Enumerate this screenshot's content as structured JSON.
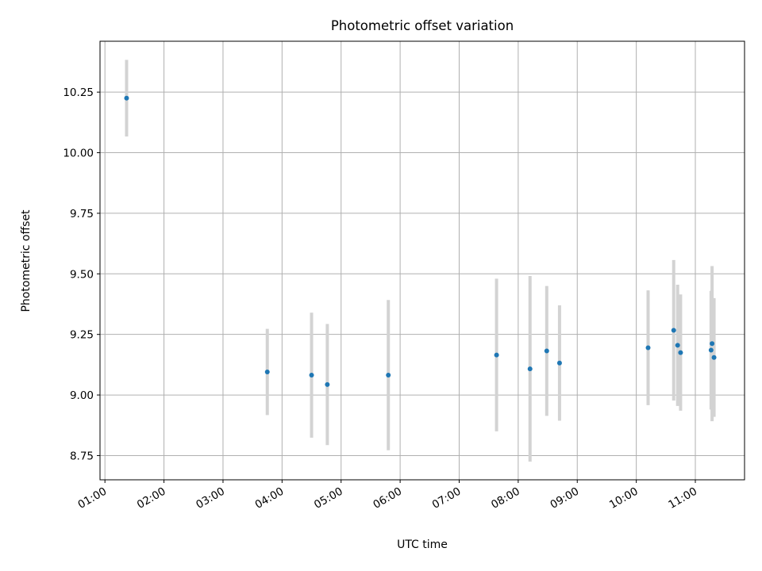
{
  "chart_data": {
    "type": "scatter",
    "title": "Photometric offset variation",
    "xlabel": "UTC time",
    "ylabel": "Photometric offset",
    "x_tick_labels": [
      "01:00",
      "02:00",
      "03:00",
      "04:00",
      "05:00",
      "06:00",
      "07:00",
      "08:00",
      "09:00",
      "10:00",
      "11:00"
    ],
    "y_tick_labels": [
      "8.75",
      "9.00",
      "9.25",
      "9.50",
      "9.75",
      "10.00",
      "10.25"
    ],
    "x_ticks": [
      "01:00",
      "02:00",
      "03:00",
      "04:00",
      "05:00",
      "06:00",
      "07:00",
      "08:00",
      "09:00",
      "10:00",
      "11:00"
    ],
    "y_ticks": [
      8.75,
      9.0,
      9.25,
      9.5,
      9.75,
      10.0,
      10.25
    ],
    "xlim": [
      "00:55",
      "11:50"
    ],
    "ylim": [
      8.65,
      10.46
    ],
    "grid": true,
    "marker_color": "#1f77b4",
    "errorbar_color": "#d3d3d3",
    "points": [
      {
        "x": "01:22",
        "y": 10.225,
        "err": 0.158
      },
      {
        "x": "03:45",
        "y": 9.095,
        "err": 0.178
      },
      {
        "x": "04:30",
        "y": 9.082,
        "err": 0.258
      },
      {
        "x": "04:46",
        "y": 9.043,
        "err": 0.25
      },
      {
        "x": "05:48",
        "y": 9.082,
        "err": 0.31
      },
      {
        "x": "07:38",
        "y": 9.165,
        "err": 0.315
      },
      {
        "x": "08:12",
        "y": 9.108,
        "err": 0.383
      },
      {
        "x": "08:29",
        "y": 9.182,
        "err": 0.268
      },
      {
        "x": "08:42",
        "y": 9.132,
        "err": 0.238
      },
      {
        "x": "10:12",
        "y": 9.195,
        "err": 0.237
      },
      {
        "x": "10:38",
        "y": 9.267,
        "err": 0.29
      },
      {
        "x": "10:42",
        "y": 9.205,
        "err": 0.25
      },
      {
        "x": "10:45",
        "y": 9.175,
        "err": 0.24
      },
      {
        "x": "11:16",
        "y": 9.185,
        "err": 0.245
      },
      {
        "x": "11:17",
        "y": 9.212,
        "err": 0.32
      },
      {
        "x": "11:19",
        "y": 9.155,
        "err": 0.245
      }
    ]
  }
}
